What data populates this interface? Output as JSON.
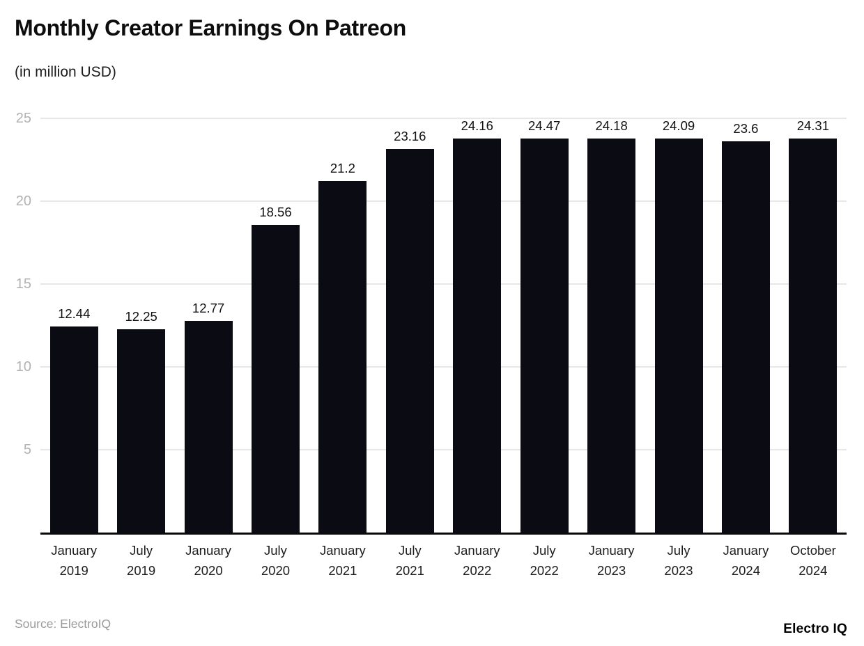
{
  "footer": {
    "source": "Source: ElectroIQ",
    "brand": "Electro IQ"
  },
  "colors": {
    "bar": "#0b0b14",
    "grid": "#e7e7e7",
    "axis": "#0a0a0a",
    "tick_label": "#b2b2b2",
    "value_label": "#111111"
  },
  "chart_data": {
    "type": "bar",
    "title": "Monthly Creator Earnings On Patreon",
    "subtitle": "(in million USD)",
    "categories": [
      "January 2019",
      "July 2019",
      "January 2020",
      "July 2020",
      "January 2021",
      "July 2021",
      "January 2022",
      "July 2022",
      "January 2023",
      "July 2023",
      "January 2024",
      "October 2024"
    ],
    "values": [
      12.44,
      12.25,
      12.77,
      18.56,
      21.2,
      23.16,
      24.16,
      24.47,
      24.18,
      24.09,
      23.6,
      24.31
    ],
    "xlabel": "",
    "ylabel": "",
    "ylim": [
      0,
      25
    ],
    "yticks": [
      5,
      10,
      15,
      20,
      25
    ],
    "grid": true,
    "legend_position": "none"
  }
}
